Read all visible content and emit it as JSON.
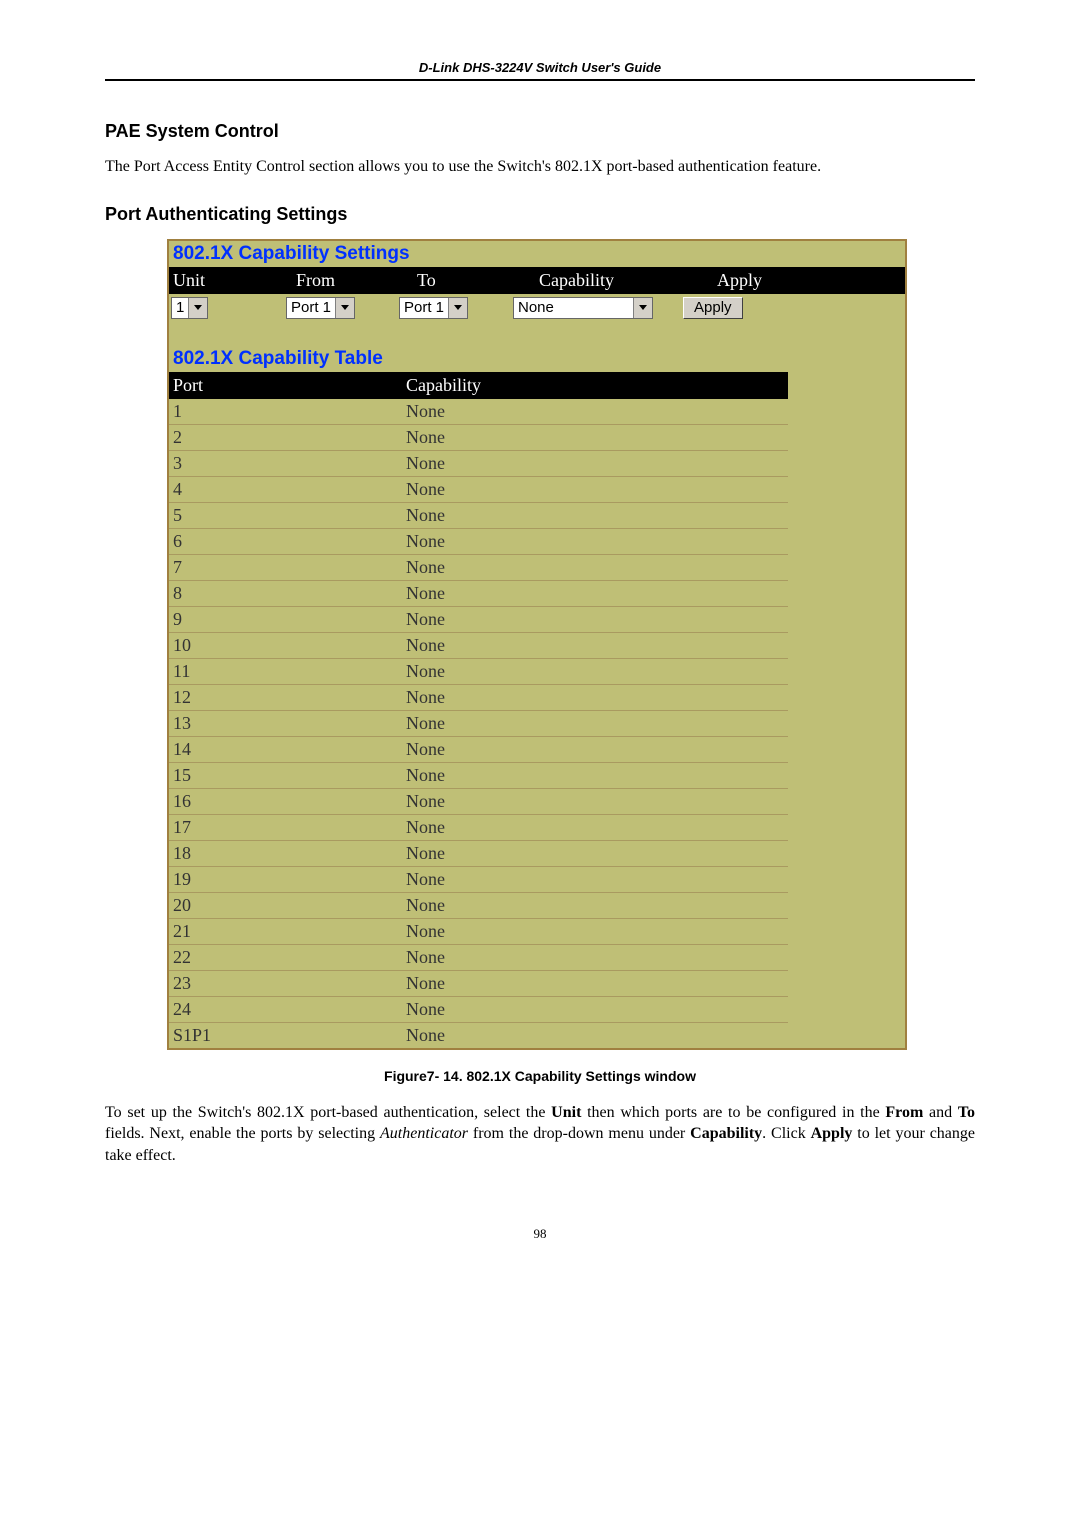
{
  "header": {
    "text": "D-Link DHS-3224V Switch User's Guide"
  },
  "sections": {
    "pae_title": "PAE System Control",
    "pae_body": "The Port Access Entity Control section allows you to use the Switch's 802.1X port-based authentication feature.",
    "auth_title": "Port Authenticating Settings"
  },
  "settings_panel": {
    "title": "802.1X Capability Settings",
    "columns": {
      "unit": "Unit",
      "from": "From",
      "to": "To",
      "capability": "Capability",
      "apply": "Apply"
    },
    "values": {
      "unit": "1",
      "from": "Port 1",
      "to": "Port 1",
      "capability": "None",
      "apply_button": "Apply"
    },
    "colors": {
      "panel_bg": "#bfbf76",
      "panel_border": "#a08040",
      "title_color": "#0030ff",
      "header_bg": "#000000",
      "header_fg": "#ffffff",
      "select_bg": "#ffffff",
      "button_bg": "#d4d0c8"
    }
  },
  "capability_table": {
    "title": "802.1X Capability Table",
    "columns": {
      "port": "Port",
      "capability": "Capability"
    },
    "rows": [
      {
        "port": "1",
        "capability": "None"
      },
      {
        "port": "2",
        "capability": "None"
      },
      {
        "port": "3",
        "capability": "None"
      },
      {
        "port": "4",
        "capability": "None"
      },
      {
        "port": "5",
        "capability": "None"
      },
      {
        "port": "6",
        "capability": "None"
      },
      {
        "port": "7",
        "capability": "None"
      },
      {
        "port": "8",
        "capability": "None"
      },
      {
        "port": "9",
        "capability": "None"
      },
      {
        "port": "10",
        "capability": "None"
      },
      {
        "port": "11",
        "capability": "None"
      },
      {
        "port": "12",
        "capability": "None"
      },
      {
        "port": "13",
        "capability": "None"
      },
      {
        "port": "14",
        "capability": "None"
      },
      {
        "port": "15",
        "capability": "None"
      },
      {
        "port": "16",
        "capability": "None"
      },
      {
        "port": "17",
        "capability": "None"
      },
      {
        "port": "18",
        "capability": "None"
      },
      {
        "port": "19",
        "capability": "None"
      },
      {
        "port": "20",
        "capability": "None"
      },
      {
        "port": "21",
        "capability": "None"
      },
      {
        "port": "22",
        "capability": "None"
      },
      {
        "port": "23",
        "capability": "None"
      },
      {
        "port": "24",
        "capability": "None"
      },
      {
        "port": "S1P1",
        "capability": "None"
      }
    ],
    "row_separator_color": "#a99a60"
  },
  "figure_caption": "Figure7- 14.  802.1X Capability Settings window",
  "closing_paragraph": {
    "prefix": "To set up the Switch's 802.1X port-based authentication, select the ",
    "unit": "Unit",
    "mid1": " then which ports are to be configured in the ",
    "from": "From",
    "mid2": " and ",
    "to": "To",
    "mid3": " fields. Next, enable the ports by selecting ",
    "authenticator": "Authenticator",
    "mid4": " from the drop-down menu under ",
    "capability": "Capability",
    "mid5": ". Click ",
    "apply": "Apply",
    "suffix": " to let your change take effect."
  },
  "page_number": "98"
}
